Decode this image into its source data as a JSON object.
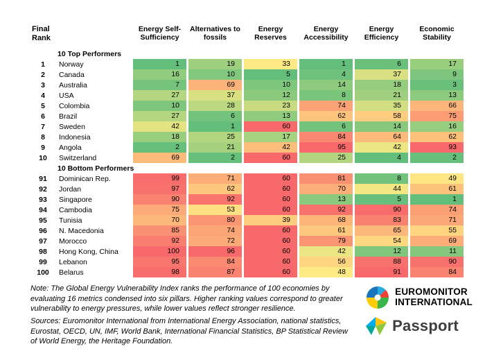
{
  "chart_data": {
    "type": "heatmap",
    "rank_header": "Final Rank",
    "columns": [
      "Energy Self-Sufficiency",
      "Alternatives to fossils",
      "Energy Reserves",
      "Energy Accessibility",
      "Energy Efficiency",
      "Economic Stability"
    ],
    "value_range": [
      1,
      100
    ],
    "color_scale": {
      "low_green": "#63BE7B",
      "mid_yellow": "#FFEB84",
      "high_red": "#F8696B",
      "normalization": "per-column"
    },
    "sections": [
      {
        "label": "10 Top Performers",
        "rows": [
          {
            "rank": "1",
            "country": "Norway",
            "values": [
              1,
              19,
              33,
              1,
              6,
              17
            ]
          },
          {
            "rank": "2",
            "country": "Canada",
            "values": [
              16,
              10,
              5,
              4,
              37,
              9
            ]
          },
          {
            "rank": "3",
            "country": "Australia",
            "values": [
              7,
              69,
              10,
              14,
              18,
              3
            ]
          },
          {
            "rank": "4",
            "country": "USA",
            "values": [
              27,
              37,
              12,
              8,
              21,
              13
            ]
          },
          {
            "rank": "5",
            "country": "Colombia",
            "values": [
              10,
              28,
              23,
              74,
              35,
              66
            ]
          },
          {
            "rank": "6",
            "country": "Brazil",
            "values": [
              27,
              6,
              13,
              62,
              58,
              75
            ]
          },
          {
            "rank": "7",
            "country": "Sweden",
            "values": [
              42,
              1,
              60,
              6,
              14,
              16
            ]
          },
          {
            "rank": "8",
            "country": "Indonesia",
            "values": [
              18,
              25,
              17,
              84,
              64,
              62
            ]
          },
          {
            "rank": "9",
            "country": "Angola",
            "values": [
              2,
              21,
              42,
              95,
              42,
              93
            ]
          },
          {
            "rank": "10",
            "country": "Switzerland",
            "values": [
              69,
              2,
              60,
              25,
              4,
              2
            ]
          }
        ]
      },
      {
        "label": "10 Bottom Performers",
        "rows": [
          {
            "rank": "91",
            "country": "Dominican Rep.",
            "values": [
              99,
              71,
              60,
              81,
              8,
              49
            ]
          },
          {
            "rank": "92",
            "country": "Jordan",
            "values": [
              97,
              62,
              60,
              70,
              44,
              61
            ]
          },
          {
            "rank": "93",
            "country": "Singapore",
            "values": [
              90,
              92,
              60,
              13,
              5,
              1
            ]
          },
          {
            "rank": "94",
            "country": "Cambodia",
            "values": [
              75,
              53,
              60,
              92,
              90,
              74
            ]
          },
          {
            "rank": "95",
            "country": "Tunisia",
            "values": [
              70,
              80,
              39,
              68,
              83,
              71
            ]
          },
          {
            "rank": "96",
            "country": "N. Macedonia",
            "values": [
              85,
              74,
              60,
              61,
              65,
              55
            ]
          },
          {
            "rank": "97",
            "country": "Morocco",
            "values": [
              92,
              72,
              60,
              79,
              54,
              69
            ]
          },
          {
            "rank": "98",
            "country": "Hong Kong, China",
            "values": [
              100,
              96,
              60,
              42,
              12,
              11
            ]
          },
          {
            "rank": "99",
            "country": "Lebanon",
            "values": [
              95,
              84,
              60,
              56,
              88,
              90
            ]
          },
          {
            "rank": "100",
            "country": "Belarus",
            "values": [
              98,
              87,
              60,
              48,
              91,
              84
            ]
          }
        ]
      }
    ]
  },
  "footer": {
    "note": "Note: The Global Energy Vulnerability Index ranks the performance of 100 economies by evaluating 16 metrics condensed into six pillars. Higher ranking values correspond to greater vulnerability to energy pressures, while lower values reflect stronger resilience.",
    "sources": "Sources: Euromonitor International from International Energy Association, national statistics, Eurostat, OECD, UN, IMF, World Bank, International Financial Statistics, BP Statistical Review of World Energy, the Heritage Foundation."
  },
  "branding": {
    "euromonitor_line1": "EUROMONITOR",
    "euromonitor_line2": "INTERNATIONAL",
    "passport": "Passport"
  }
}
